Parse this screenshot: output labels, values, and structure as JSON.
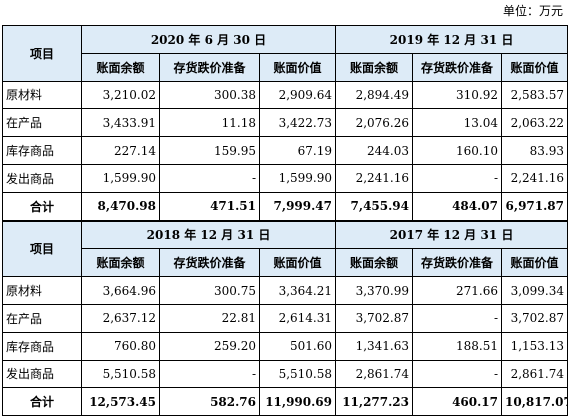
{
  "unit": "单位：万元",
  "item_header": "项目",
  "columns": [
    "账面余额",
    "存货跌价准备",
    "账面价值"
  ],
  "blocks": [
    {
      "periods": [
        "2020 年 6 月 30 日",
        "2019 年 12 月 31 日"
      ],
      "rows": [
        {
          "label": "原材料",
          "values": [
            "3,210.02",
            "300.38",
            "2,909.64",
            "2,894.49",
            "310.92",
            "2,583.57"
          ]
        },
        {
          "label": "在产品",
          "values": [
            "3,433.91",
            "11.18",
            "3,422.73",
            "2,076.26",
            "13.04",
            "2,063.22"
          ]
        },
        {
          "label": "库存商品",
          "values": [
            "227.14",
            "159.95",
            "67.19",
            "244.03",
            "160.10",
            "83.93"
          ]
        },
        {
          "label": "发出商品",
          "values": [
            "1,599.90",
            "-",
            "1,599.90",
            "2,241.16",
            "-",
            "2,241.16"
          ]
        }
      ],
      "total": {
        "label": "合计",
        "values": [
          "8,470.98",
          "471.51",
          "7,999.47",
          "7,455.94",
          "484.07",
          "6,971.87"
        ]
      }
    },
    {
      "periods": [
        "2018 年 12 月 31 日",
        "2017 年 12 月 31 日"
      ],
      "rows": [
        {
          "label": "原材料",
          "values": [
            "3,664.96",
            "300.75",
            "3,364.21",
            "3,370.99",
            "271.66",
            "3,099.34"
          ]
        },
        {
          "label": "在产品",
          "values": [
            "2,637.12",
            "22.81",
            "2,614.31",
            "3,702.87",
            "-",
            "3,702.87"
          ]
        },
        {
          "label": "库存商品",
          "values": [
            "760.80",
            "259.20",
            "501.60",
            "1,341.63",
            "188.51",
            "1,153.13"
          ]
        },
        {
          "label": "发出商品",
          "values": [
            "5,510.58",
            "-",
            "5,510.58",
            "2,861.74",
            "-",
            "2,861.74"
          ]
        }
      ],
      "total": {
        "label": "合计",
        "values": [
          "12,573.45",
          "582.76",
          "11,990.69",
          "11,277.23",
          "460.17",
          "10,817.07"
        ]
      }
    }
  ]
}
